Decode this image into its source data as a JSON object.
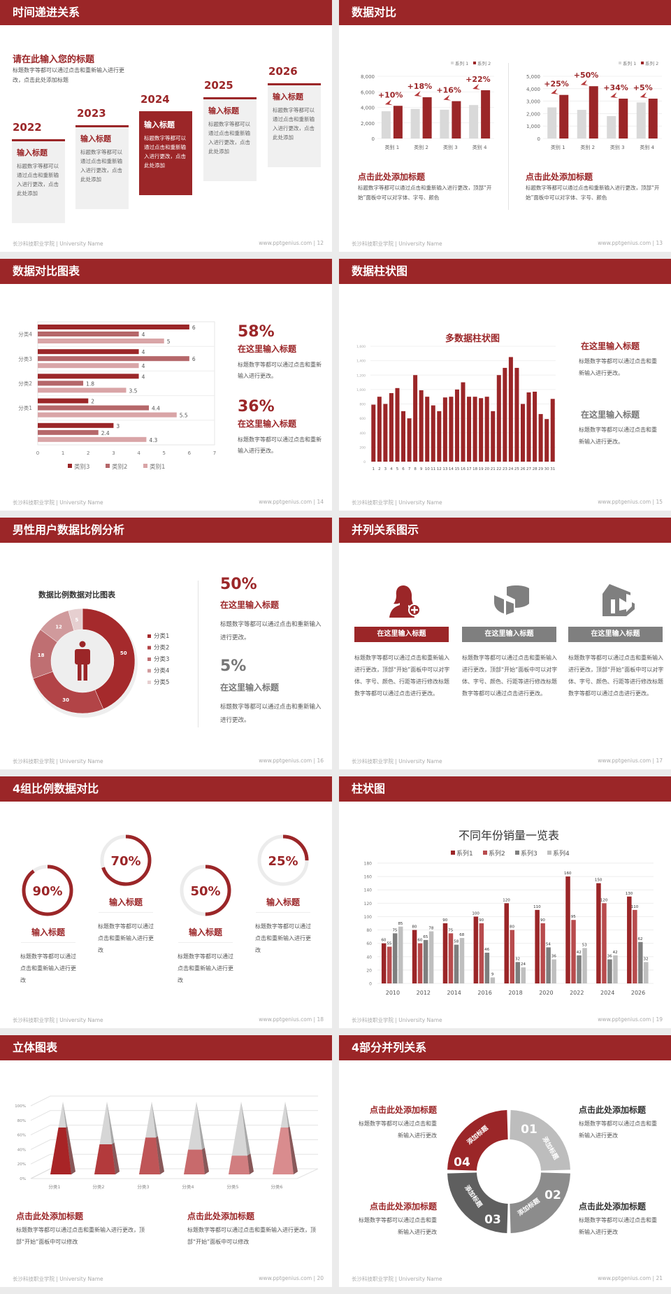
{
  "footer": {
    "school": "长沙科技职业学院 | University Name",
    "site": "www.pptgenius.com"
  },
  "colors": {
    "brand_red": "#9b2628",
    "light_grey": "#d9d9d9",
    "mid_grey": "#7f7f7f"
  },
  "s12": {
    "title": "时间递进关系",
    "page": "| 12",
    "subtitle": "请在此输入您的标题",
    "intro": "标题数字等都可以通过点击和重新输入进行更改，点击此处添加标题",
    "items": [
      {
        "year": "2022",
        "heading": "输入标题",
        "body": "标题数字等都可以通过点击和重新输入进行更改，点击此处添加"
      },
      {
        "year": "2023",
        "heading": "输入标题",
        "body": "标题数字等都可以通过点击和重新输入进行更改，点击此处添加"
      },
      {
        "year": "2024",
        "heading": "输入标题",
        "body": "标题数字等都可以通过点击和重新输入进行更改，点击此处添加"
      },
      {
        "year": "2025",
        "heading": "输入标题",
        "body": "标题数字等都可以通过点击和重新输入进行更改，点击此处添加"
      },
      {
        "year": "2026",
        "heading": "输入标题",
        "body": "标题数字等都可以通过点击和重新输入进行更改，点击此处添加"
      }
    ]
  },
  "s13": {
    "title": "数据对比",
    "page": "| 13",
    "blocks": [
      {
        "heading": "点击此处添加标题",
        "body": "标题数字等都可以通过点击和重新输入进行更改，顶部“开始”面板中可以对字体、字号、颜色"
      },
      {
        "heading": "点击此处添加标题",
        "body": "标题数字等都可以通过点击和重新输入进行更改，顶部“开始”面板中可以对字体、字号、颜色"
      }
    ]
  },
  "s14": {
    "title": "数据对比图表",
    "page": "| 14",
    "stats": [
      {
        "value": "58%",
        "heading": "在这里输入标题",
        "body": "标题数字等都可以通过点击和重新输入进行更改。"
      },
      {
        "value": "36%",
        "heading": "在这里输入标题",
        "body": "标题数字等都可以通过点击和重新输入进行更改。"
      }
    ]
  },
  "s15": {
    "title": "数据柱状图",
    "page": "| 15",
    "blocks": [
      {
        "heading": "在这里输入标题",
        "body": "标题数字等都可以通过点击和重新输入进行更改。"
      },
      {
        "heading": "在这里输入标题",
        "body": "标题数字等都可以通过点击和重新输入进行更改。"
      }
    ]
  },
  "s16": {
    "title": "男性用户数据比例分析",
    "page": "| 16",
    "center_icon": "male-person-icon",
    "stats": [
      {
        "value": "50%",
        "heading": "在这里输入标题",
        "body": "标题数字等都可以通过点击和重新输入进行更改。"
      },
      {
        "value": "5%",
        "heading": "在这里输入标题",
        "body": "标题数字等都可以通过点击和重新输入进行更改。"
      }
    ]
  },
  "s17": {
    "title": "并列关系图示",
    "page": "| 17",
    "items": [
      {
        "icon": "female-user-add-icon",
        "heading": "在这里输入标题",
        "body": "标题数字等都可以通过点击和重新输入进行更改，顶部“开始”面板中可以对字体、字号、颜色、行距等进行修改标题数字等都可以通过点击进行更改。"
      },
      {
        "icon": "pie-chart-3d-icon",
        "heading": "在这里输入标题",
        "body": "标题数字等都可以通过点击和重新输入进行更改，顶部“开始”面板中可以对字体、字号、颜色、行距等进行修改标题数字等都可以通过点击进行更改。"
      },
      {
        "icon": "building-icon",
        "heading": "在这里输入标题",
        "body": "标题数字等都可以通过点击和重新输入进行更改，顶部“开始”面板中可以对字体、字号、颜色、行距等进行修改标题数字等都可以通过点击进行更改。"
      }
    ]
  },
  "s18": {
    "title": "4组比例数据对比",
    "page": "| 18",
    "items": [
      {
        "percent": 90,
        "label": "90%",
        "heading": "输入标题",
        "body": "标题数字等都可以通过点击和重新输入进行更改"
      },
      {
        "percent": 70,
        "label": "70%",
        "heading": "输入标题",
        "body": "标题数字等都可以通过点击和重新输入进行更改"
      },
      {
        "percent": 50,
        "label": "50%",
        "heading": "输入标题",
        "body": "标题数字等都可以通过点击和重新输入进行更改"
      },
      {
        "percent": 25,
        "label": "25%",
        "heading": "输入标题",
        "body": "标题数字等都可以通过点击和重新输入进行更改"
      }
    ]
  },
  "s19": {
    "title": "柱状图",
    "page": "| 19"
  },
  "s20": {
    "title": "立体图表",
    "page": "| 20",
    "blocks": [
      {
        "heading": "点击此处添加标题",
        "body": "标题数字等都可以通过点击和重新输入进行更改，顶部“开始”面板中可以修改"
      },
      {
        "heading": "点击此处添加标题",
        "body": "标题数字等都可以通过点击和重新输入进行更改，顶部“开始”面板中可以修改"
      }
    ]
  },
  "s21": {
    "title": "4部分并列关系",
    "page": "| 21",
    "segments": [
      {
        "number": "01",
        "label": "添加标题",
        "color": "#bdbdbd"
      },
      {
        "number": "02",
        "label": "添加标题",
        "color": "#8c8c8c"
      },
      {
        "number": "03",
        "label": "添加标题",
        "color": "#5f5f5f"
      },
      {
        "number": "04",
        "label": "添加标题",
        "color": "#9b2628"
      }
    ],
    "blocks": [
      {
        "heading": "点击此处添加标题",
        "body": "标题数字等都可以通过点击和重新输入进行更改"
      },
      {
        "heading": "点击此处添加标题",
        "body": "标题数字等都可以通过点击和重新输入进行更改"
      },
      {
        "heading": "点击此处添加标题",
        "body": "标题数字等都可以通过点击和重新输入进行更改"
      },
      {
        "heading": "点击此处添加标题",
        "body": "标题数字等都可以通过点击和重新输入进行更改"
      }
    ]
  },
  "chart_data": [
    {
      "type": "bar",
      "categories": [
        "类别 1",
        "类别 2",
        "类别 3",
        "类别 4"
      ],
      "series": [
        {
          "name": "系列 1",
          "values": [
            3500,
            3800,
            3700,
            4300
          ],
          "color": "#d9d9d9"
        },
        {
          "name": "系列 2",
          "values": [
            4200,
            5300,
            4800,
            6200
          ],
          "color": "#9b2628"
        }
      ],
      "ylim": [
        0,
        8000
      ],
      "ytick_step": 2000,
      "annotations": [
        "+10%",
        "+18%",
        "+16%",
        "+22%"
      ],
      "legend": "top-right",
      "grid": true
    },
    {
      "type": "bar",
      "categories": [
        "类别 1",
        "类别 2",
        "类别 3",
        "类别 4"
      ],
      "series": [
        {
          "name": "系列 1",
          "values": [
            2500,
            2300,
            1800,
            2900
          ],
          "color": "#d9d9d9"
        },
        {
          "name": "系列 2",
          "values": [
            3500,
            4200,
            3200,
            3200
          ],
          "color": "#9b2628"
        }
      ],
      "ylim": [
        0,
        5000
      ],
      "ytick_step": 1000,
      "annotations": [
        "+25%",
        "+50%",
        "+34%",
        "+5%"
      ],
      "legend": "top-right",
      "grid": true
    },
    {
      "type": "bar",
      "orientation": "horizontal",
      "categories": [
        "",
        "分类1",
        "分类2",
        "分类3",
        "分类4"
      ],
      "series": [
        {
          "name": "类别3",
          "values": [
            3,
            2,
            4,
            4,
            6
          ],
          "color": "#9b2628"
        },
        {
          "name": "类别2",
          "values": [
            2.4,
            4.4,
            1.8,
            6,
            4
          ],
          "color": "#b5676a"
        },
        {
          "name": "类别1",
          "values": [
            4.3,
            5.5,
            3.5,
            4,
            5
          ],
          "color": "#d9a5a7"
        }
      ],
      "xlim": [
        0,
        7
      ],
      "xtick_step": 1,
      "legend": "bottom",
      "data_labels": true
    },
    {
      "type": "bar",
      "title": "多数据柱状图",
      "categories": [
        "1",
        "2",
        "3",
        "4",
        "5",
        "6",
        "7",
        "8",
        "9",
        "10",
        "11",
        "12",
        "13",
        "14",
        "15",
        "16",
        "17",
        "18",
        "19",
        "20",
        "21",
        "22",
        "23",
        "24",
        "25",
        "26",
        "27",
        "28",
        "29",
        "30",
        "31"
      ],
      "values": [
        790,
        900,
        800,
        950,
        1020,
        700,
        600,
        1200,
        990,
        900,
        780,
        700,
        890,
        900,
        1000,
        1100,
        900,
        900,
        880,
        900,
        700,
        1200,
        1300,
        1450,
        1300,
        800,
        960,
        970,
        660,
        590,
        870
      ],
      "ylim": [
        0,
        1600
      ],
      "ytick_step": 200,
      "color": "#9b2628",
      "grid": true
    },
    {
      "type": "pie",
      "variant": "donut",
      "title": "数据比例数据对比图表",
      "categories": [
        "分类1",
        "分类2",
        "分类3",
        "分类4",
        "分类5"
      ],
      "values": [
        50,
        30,
        18,
        12,
        5
      ],
      "colors": [
        "#a52a2c",
        "#b24447",
        "#bf6f72",
        "#d09a9c",
        "#e6cfd0"
      ],
      "legend": "right",
      "data_labels": true
    },
    {
      "type": "bar",
      "title": "不同年份销量一览表",
      "categories": [
        "2010",
        "2012",
        "2014",
        "2016",
        "2018",
        "2020",
        "2022",
        "2024",
        "2026"
      ],
      "series": [
        {
          "name": "系列1",
          "values": [
            60,
            80,
            90,
            100,
            120,
            110,
            160,
            150,
            130
          ],
          "color": "#9b2628"
        },
        {
          "name": "系列2",
          "values": [
            55,
            60,
            75,
            90,
            80,
            90,
            95,
            120,
            110
          ],
          "color": "#b84c4e"
        },
        {
          "name": "系列3",
          "values": [
            75,
            65,
            58,
            46,
            32,
            54,
            42,
            36,
            62
          ],
          "color": "#7f7f7f"
        },
        {
          "name": "系列4",
          "values": [
            85,
            78,
            68,
            9,
            24,
            36,
            53,
            42,
            32
          ],
          "color": "#bfbfbf"
        }
      ],
      "ylim": [
        0,
        180
      ],
      "ytick_step": 20,
      "legend": "top",
      "data_labels": true,
      "grid": true
    },
    {
      "type": "bar",
      "variant": "3d-pyramid",
      "categories": [
        "分类1",
        "分类2",
        "分类3",
        "分类4",
        "分类5",
        "分类6"
      ],
      "values": [
        70,
        45,
        55,
        37,
        28,
        70
      ],
      "ylim": [
        0,
        100
      ],
      "ytick_step": 20,
      "yformat": "percent",
      "colors": [
        "#a82426",
        "#b33a3c",
        "#bf5557",
        "#c86a6c",
        "#d17e80",
        "#d98c8e"
      ],
      "grid": true
    }
  ]
}
